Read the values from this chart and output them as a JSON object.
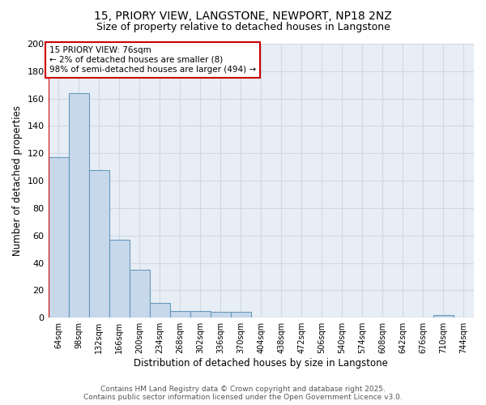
{
  "title_line1": "15, PRIORY VIEW, LANGSTONE, NEWPORT, NP18 2NZ",
  "title_line2": "Size of property relative to detached houses in Langstone",
  "xlabel": "Distribution of detached houses by size in Langstone",
  "ylabel": "Number of detached properties",
  "bar_color": "#c8d8eb",
  "bar_edge_color": "#6699bb",
  "background_color": "#e8eef5",
  "grid_color": "#d0d8e8",
  "categories": [
    "64sqm",
    "98sqm",
    "132sqm",
    "166sqm",
    "200sqm",
    "234sqm",
    "268sqm",
    "302sqm",
    "336sqm",
    "370sqm",
    "404sqm",
    "438sqm",
    "472sqm",
    "506sqm",
    "540sqm",
    "574sqm",
    "608sqm",
    "642sqm",
    "676sqm",
    "710sqm",
    "744sqm"
  ],
  "values": [
    117,
    164,
    108,
    57,
    35,
    11,
    5,
    5,
    4,
    4,
    0,
    0,
    0,
    0,
    0,
    0,
    0,
    0,
    0,
    2,
    0
  ],
  "ylim": [
    0,
    200
  ],
  "yticks": [
    0,
    20,
    40,
    60,
    80,
    100,
    120,
    140,
    160,
    180,
    200
  ],
  "property_line_color": "#cc0000",
  "annotation_text": "15 PRIORY VIEW: 76sqm\n← 2% of detached houses are smaller (8)\n98% of semi-detached houses are larger (494) →",
  "annotation_box_facecolor": "#ffffff",
  "annotation_border_color": "#cc0000",
  "footnote_line1": "Contains HM Land Registry data © Crown copyright and database right 2025.",
  "footnote_line2": "Contains public sector information licensed under the Open Government Licence v3.0.",
  "bar_width": 1.0
}
